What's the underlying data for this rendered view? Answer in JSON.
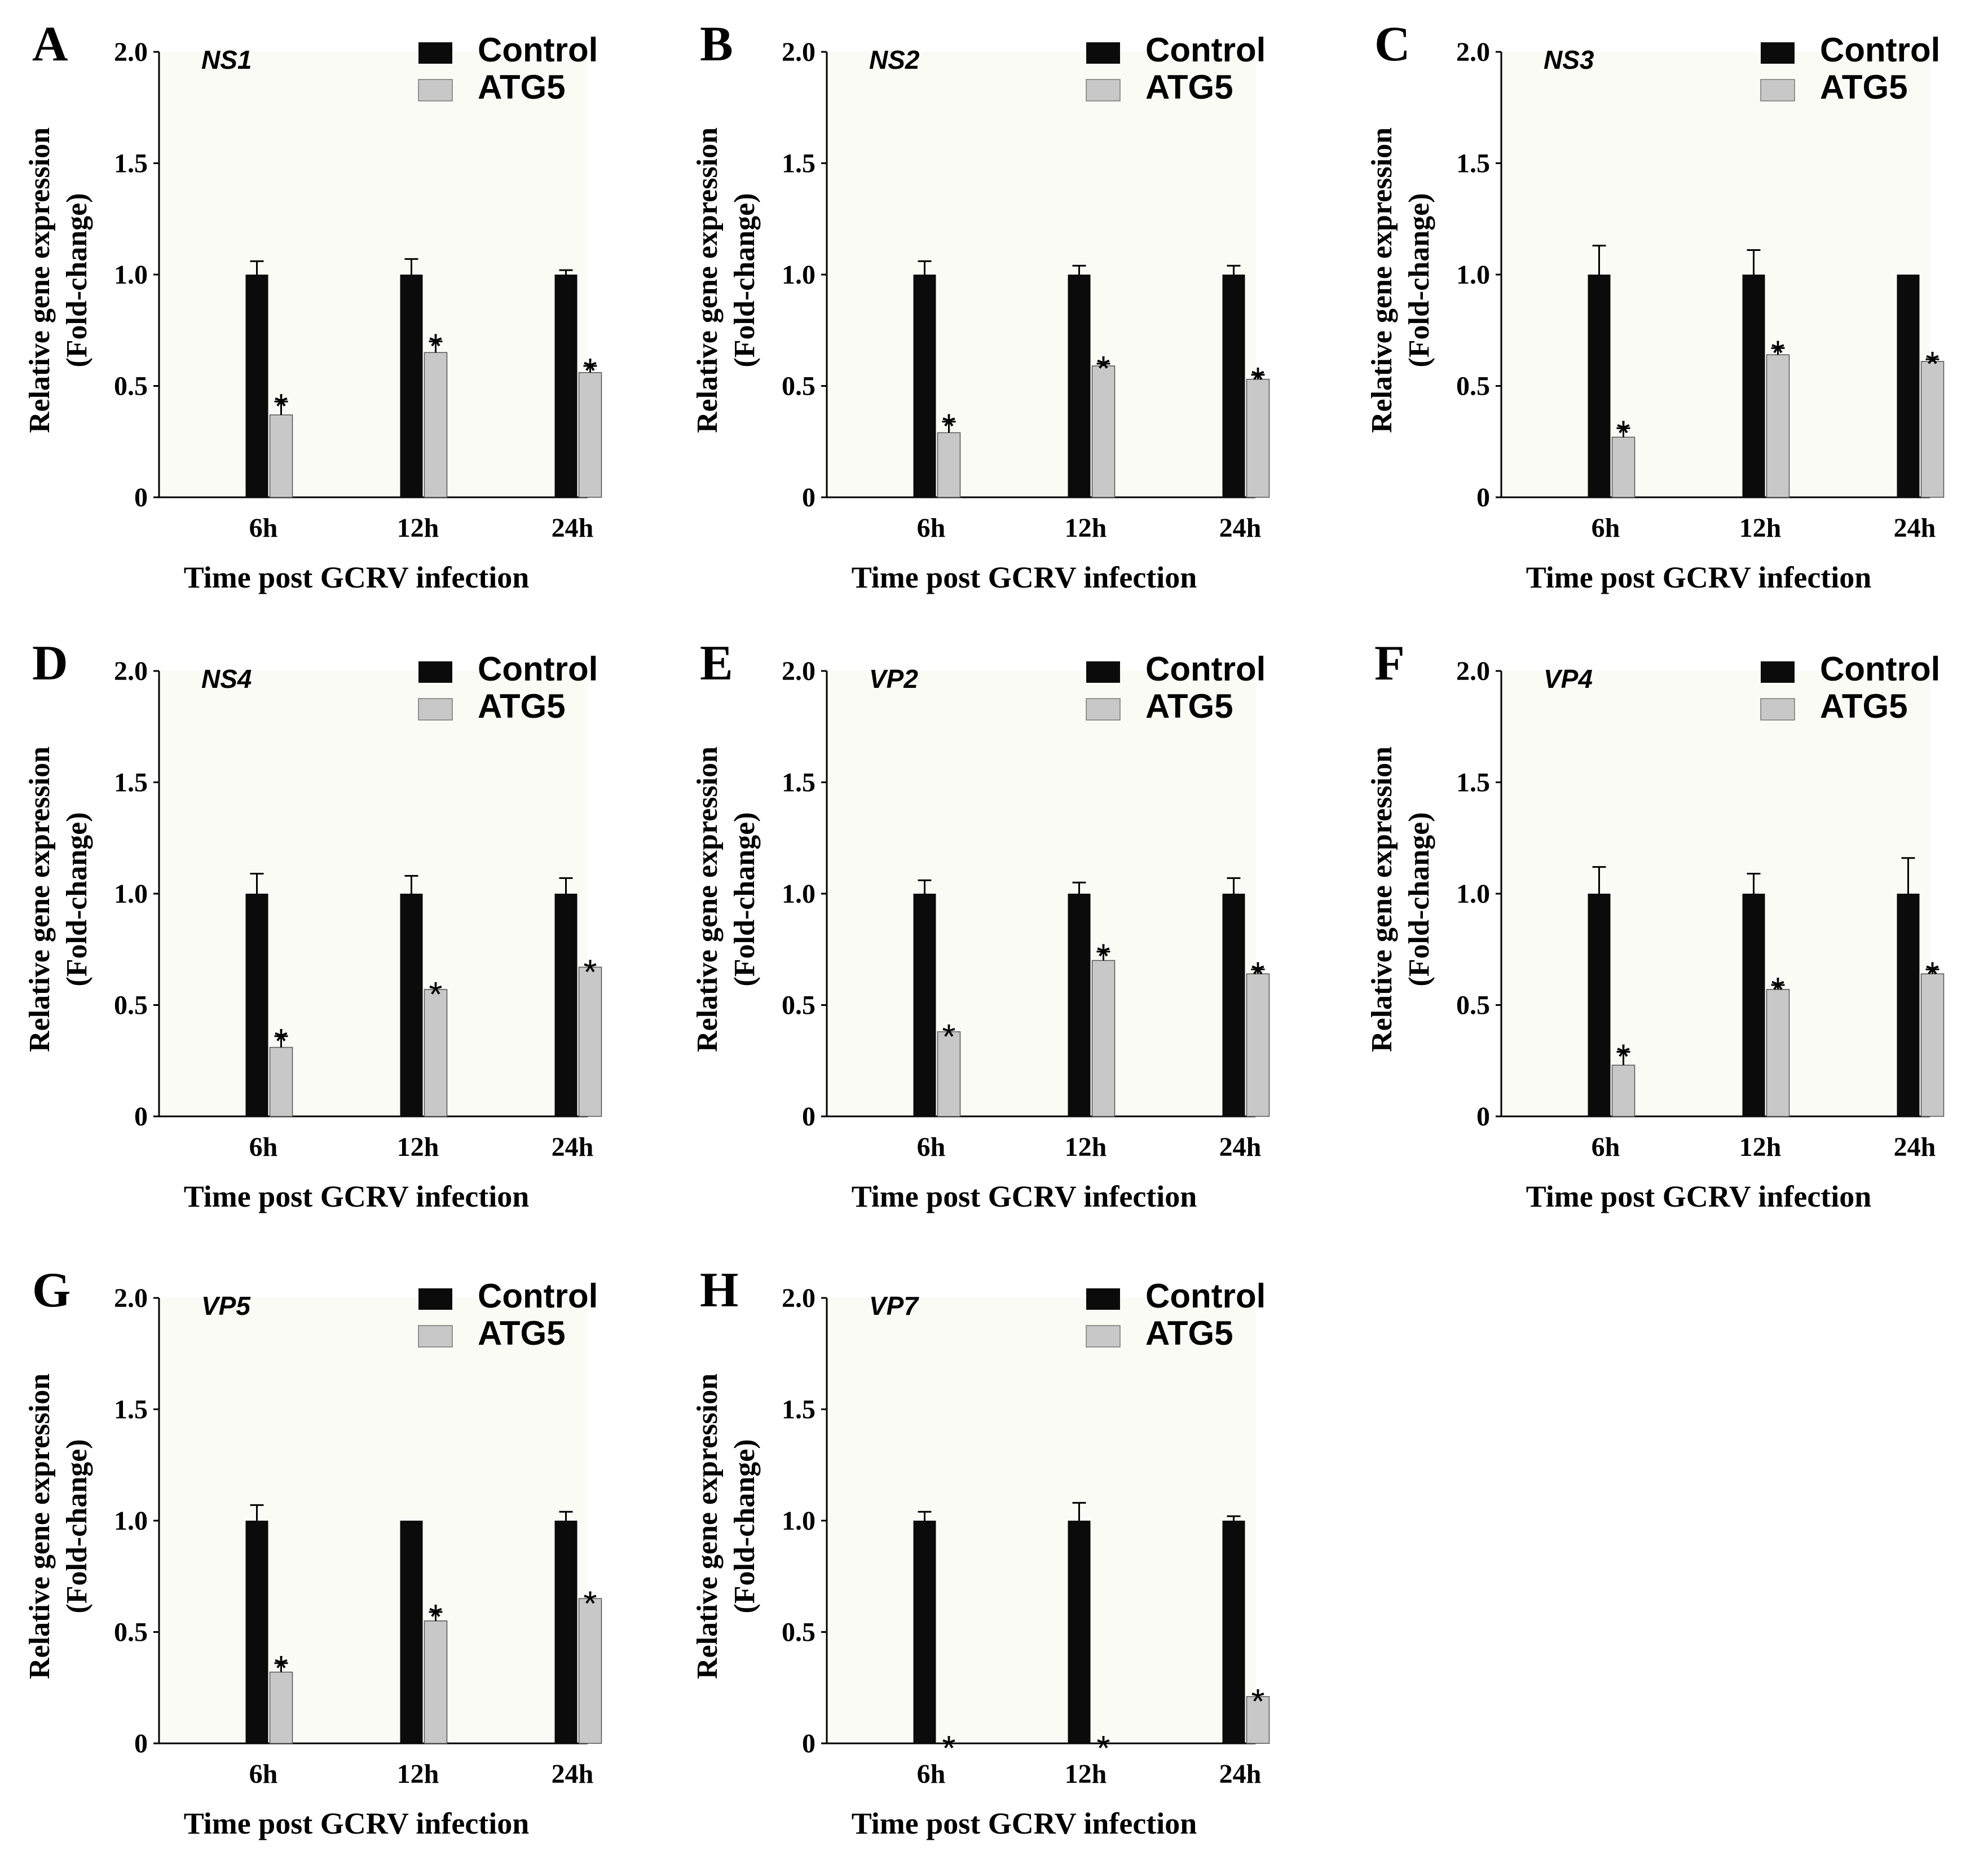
{
  "figure": {
    "legend_labels": [
      "Control",
      "ATG5"
    ],
    "colors": {
      "control": "#0b0b0b",
      "atg5": "#c8c8c8",
      "axis": "#000000",
      "plot_bg": "#fbfbf6"
    }
  },
  "chart_data": [
    {
      "panel": "A",
      "title": "NS1",
      "type": "bar",
      "categories": [
        "6h",
        "12h",
        "24h"
      ],
      "series": [
        {
          "name": "Control",
          "values": [
            1.0,
            1.0,
            1.0
          ],
          "errors": [
            0.06,
            0.07,
            0.02
          ]
        },
        {
          "name": "ATG5",
          "values": [
            0.37,
            0.65,
            0.56
          ],
          "errors": [
            0.06,
            0.05,
            0.03
          ]
        }
      ],
      "significance": [
        "*",
        "*",
        "*"
      ],
      "xlabel": "Time post GCRV infection",
      "ylabel": [
        "Relative gene expression",
        "(Fold-change)"
      ],
      "yticks": [
        "0",
        "0.5",
        "1.0",
        "1.5",
        "2.0"
      ],
      "ylim": [
        0,
        2.0
      ]
    },
    {
      "panel": "B",
      "title": "NS2",
      "type": "bar",
      "categories": [
        "6h",
        "12h",
        "24h"
      ],
      "series": [
        {
          "name": "Control",
          "values": [
            1.0,
            1.0,
            1.0
          ],
          "errors": [
            0.06,
            0.04,
            0.04
          ]
        },
        {
          "name": "ATG5",
          "values": [
            0.29,
            0.59,
            0.53
          ],
          "errors": [
            0.05,
            0.01,
            0.02
          ]
        }
      ],
      "significance": [
        "*",
        "*",
        "*"
      ],
      "xlabel": "Time post GCRV infection",
      "ylabel": [
        "Relative gene expression",
        "(Fold-change)"
      ],
      "yticks": [
        "0",
        "0.5",
        "1.0",
        "1.5",
        "2.0"
      ],
      "ylim": [
        0,
        2.0
      ]
    },
    {
      "panel": "C",
      "title": "NS3",
      "type": "bar",
      "categories": [
        "6h",
        "12h",
        "24h"
      ],
      "series": [
        {
          "name": "Control",
          "values": [
            1.0,
            1.0,
            1.0
          ],
          "errors": [
            0.13,
            0.11,
            0.0
          ]
        },
        {
          "name": "ATG5",
          "values": [
            0.27,
            0.64,
            0.61
          ],
          "errors": [
            0.04,
            0.03,
            0.01
          ]
        }
      ],
      "significance": [
        "*",
        "*",
        "*"
      ],
      "xlabel": "Time post GCRV infection",
      "ylabel": [
        "Relative gene expression",
        "(Fold-change)"
      ],
      "yticks": [
        "0",
        "0.5",
        "1.0",
        "1.5",
        "2.0"
      ],
      "ylim": [
        0,
        2.0
      ]
    },
    {
      "panel": "D",
      "title": "NS4",
      "type": "bar",
      "categories": [
        "6h",
        "12h",
        "24h"
      ],
      "series": [
        {
          "name": "Control",
          "values": [
            1.0,
            1.0,
            1.0
          ],
          "errors": [
            0.09,
            0.08,
            0.07
          ]
        },
        {
          "name": "ATG5",
          "values": [
            0.31,
            0.57,
            0.67
          ],
          "errors": [
            0.05,
            0.0,
            0.0
          ]
        }
      ],
      "significance": [
        "*",
        "*",
        "*"
      ],
      "xlabel": "Time post GCRV infection",
      "ylabel": [
        "Relative gene expression",
        "(Fold-change)"
      ],
      "yticks": [
        "0",
        "0.5",
        "1.0",
        "1.5",
        "2.0"
      ],
      "ylim": [
        0,
        2.0
      ]
    },
    {
      "panel": "E",
      "title": "VP2",
      "type": "bar",
      "categories": [
        "6h",
        "12h",
        "24h"
      ],
      "series": [
        {
          "name": "Control",
          "values": [
            1.0,
            1.0,
            1.0
          ],
          "errors": [
            0.06,
            0.05,
            0.07
          ]
        },
        {
          "name": "ATG5",
          "values": [
            0.38,
            0.7,
            0.64
          ],
          "errors": [
            0.0,
            0.04,
            0.02
          ]
        }
      ],
      "significance": [
        "*",
        "*",
        "*"
      ],
      "xlabel": "Time post GCRV infection",
      "ylabel": [
        "Relative gene expression",
        "(Fold-change)"
      ],
      "yticks": [
        "0",
        "0.5",
        "1.0",
        "1.5",
        "2.0"
      ],
      "ylim": [
        0,
        2.0
      ]
    },
    {
      "panel": "F",
      "title": "VP4",
      "type": "bar",
      "categories": [
        "6h",
        "12h",
        "24h"
      ],
      "series": [
        {
          "name": "Control",
          "values": [
            1.0,
            1.0,
            1.0
          ],
          "errors": [
            0.12,
            0.09,
            0.16
          ]
        },
        {
          "name": "ATG5",
          "values": [
            0.23,
            0.57,
            0.64
          ],
          "errors": [
            0.06,
            0.02,
            0.02
          ]
        }
      ],
      "significance": [
        "*",
        "*",
        "*"
      ],
      "xlabel": "Time post GCRV infection",
      "ylabel": [
        "Relative gene expression",
        "(Fold-change)"
      ],
      "yticks": [
        "0",
        "0.5",
        "1.0",
        "1.5",
        "2.0"
      ],
      "ylim": [
        0,
        2.0
      ]
    },
    {
      "panel": "G",
      "title": "VP5",
      "type": "bar",
      "categories": [
        "6h",
        "12h",
        "24h"
      ],
      "series": [
        {
          "name": "Control",
          "values": [
            1.0,
            1.0,
            1.0
          ],
          "errors": [
            0.07,
            0.0,
            0.04
          ]
        },
        {
          "name": "ATG5",
          "values": [
            0.32,
            0.55,
            0.65
          ],
          "errors": [
            0.04,
            0.04,
            0.0
          ]
        }
      ],
      "significance": [
        "*",
        "*",
        "*"
      ],
      "xlabel": "Time post GCRV infection",
      "ylabel": [
        "Relative gene expression",
        "(Fold-change)"
      ],
      "yticks": [
        "0",
        "0.5",
        "1.0",
        "1.5",
        "2.0"
      ],
      "ylim": [
        0,
        2.0
      ]
    },
    {
      "panel": "H",
      "title": "VP7",
      "type": "bar",
      "categories": [
        "6h",
        "12h",
        "24h"
      ],
      "series": [
        {
          "name": "Control",
          "values": [
            1.0,
            1.0,
            1.0
          ],
          "errors": [
            0.04,
            0.08,
            0.02
          ]
        },
        {
          "name": "ATG5",
          "values": [
            0.0,
            0.0,
            0.21
          ],
          "errors": [
            0.0,
            0.0,
            0.0
          ]
        }
      ],
      "significance": [
        "*",
        "*",
        "*"
      ],
      "xlabel": "Time post GCRV infection",
      "ylabel": [
        "Relative gene expression",
        "(Fold-change)"
      ],
      "yticks": [
        "0",
        "0.5",
        "1.0",
        "1.5",
        "2.0"
      ],
      "ylim": [
        0,
        2.0
      ]
    }
  ]
}
